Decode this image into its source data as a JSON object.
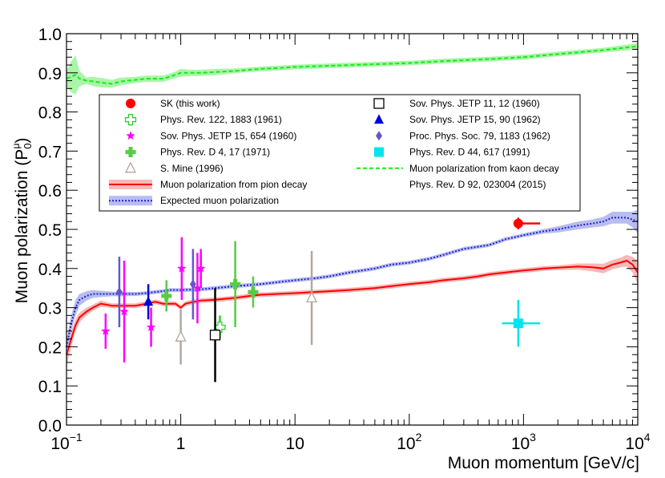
{
  "chart_data": {
    "type": "scatter",
    "xlabel": "Muon momentum [GeV/c]",
    "ylabel_main": "Muon polarization (P",
    "ylabel_sup": "μ",
    "ylabel_sub": "0",
    "ylabel_close": ")",
    "xscale": "log",
    "xlim": [
      0.1,
      10000
    ],
    "ylim": [
      0.0,
      1.0
    ],
    "grid": false,
    "legend_placement": "upper-center",
    "x_ticks": [
      {
        "v": 0.1,
        "base": "10",
        "exp": "−1"
      },
      {
        "v": 1,
        "base": "1",
        "exp": ""
      },
      {
        "v": 10,
        "base": "10",
        "exp": ""
      },
      {
        "v": 100,
        "base": "10",
        "exp": "2"
      },
      {
        "v": 1000,
        "base": "10",
        "exp": "3"
      },
      {
        "v": 10000,
        "base": "10",
        "exp": "4"
      }
    ],
    "y_ticks": [
      {
        "v": 0.0,
        "label": "0.0"
      },
      {
        "v": 0.1,
        "label": "0.1"
      },
      {
        "v": 0.2,
        "label": "0.2"
      },
      {
        "v": 0.3,
        "label": "0.3"
      },
      {
        "v": 0.4,
        "label": "0.4"
      },
      {
        "v": 0.5,
        "label": "0.5"
      },
      {
        "v": 0.6,
        "label": "0.6"
      },
      {
        "v": 0.7,
        "label": "0.7"
      },
      {
        "v": 0.8,
        "label": "0.8"
      },
      {
        "v": 0.9,
        "label": "0.9"
      },
      {
        "v": 1.0,
        "label": "1.0"
      }
    ],
    "series": [
      {
        "name": "SK (this work)",
        "kind": "points",
        "marker": "circle",
        "color": "#ff0000",
        "points": [
          {
            "x": 900,
            "y": 0.515,
            "exlo": 0,
            "exhi": 500,
            "ey": 0.015
          }
        ]
      },
      {
        "name": "Phys. Rev. 122, 1883 (1961)",
        "kind": "points",
        "marker": "open-cross",
        "color": "#33cc33",
        "points": [
          {
            "x": 2.2,
            "y": 0.25,
            "exlo": 0,
            "exhi": 0,
            "ey": 0.03
          }
        ]
      },
      {
        "name": "Sov. Phys. JETP 15, 654 (1960)",
        "kind": "points",
        "marker": "star",
        "color": "#ff00ff",
        "points": [
          {
            "x": 0.22,
            "y": 0.24,
            "exlo": 0,
            "exhi": 0,
            "ey": 0.045
          },
          {
            "x": 0.32,
            "y": 0.29,
            "exlo": 0,
            "exhi": 0,
            "ey": 0.13
          },
          {
            "x": 0.55,
            "y": 0.25,
            "exlo": 0,
            "exhi": 0,
            "ey": 0.05
          },
          {
            "x": 1.02,
            "y": 0.4,
            "exlo": 0,
            "exhi": 0,
            "ey": 0.08
          },
          {
            "x": 1.4,
            "y": 0.35,
            "exlo": 0,
            "exhi": 0,
            "ey": 0.09
          },
          {
            "x": 1.5,
            "y": 0.4,
            "exlo": 0,
            "exhi": 0,
            "ey": 0.05
          }
        ]
      },
      {
        "name": "Phys. Rev. D 4, 17 (1971)",
        "kind": "points",
        "marker": "filled-cross",
        "color": "#55cc44",
        "points": [
          {
            "x": 0.75,
            "y": 0.33,
            "exlo": 0,
            "exhi": 0,
            "ey": 0.04
          },
          {
            "x": 3.0,
            "y": 0.36,
            "exlo": 0,
            "exhi": 0,
            "ey": 0.11
          },
          {
            "x": 4.3,
            "y": 0.34,
            "exlo": 0,
            "exhi": 0,
            "ey": 0.04
          }
        ]
      },
      {
        "name": "S. Mine (1996)",
        "kind": "points",
        "marker": "open-triangle",
        "color": "#b0a8a0",
        "points": [
          {
            "x": 1.0,
            "y": 0.225,
            "exlo": 0,
            "exhi": 0,
            "ey": 0.07
          },
          {
            "x": 14,
            "y": 0.325,
            "exlo": 0,
            "exhi": 0,
            "ey": 0.12
          }
        ]
      },
      {
        "name": "Sov. Phys. JETP 11, 12 (1960)",
        "kind": "points",
        "marker": "open-square",
        "color": "#000000",
        "points": [
          {
            "x": 2.0,
            "y": 0.23,
            "exlo": 0,
            "exhi": 0,
            "ey": 0.12
          }
        ]
      },
      {
        "name": "Sov. Phys. JETP 15, 90 (1962)",
        "kind": "points",
        "marker": "triangle",
        "color": "#0000dd",
        "points": [
          {
            "x": 0.52,
            "y": 0.315,
            "exlo": 0,
            "exhi": 0,
            "ey": 0.045
          }
        ]
      },
      {
        "name": "Proc. Phys. Soc. 79, 1183 (1962)",
        "kind": "points",
        "marker": "diamond",
        "color": "#6655cc",
        "points": [
          {
            "x": 0.29,
            "y": 0.34,
            "exlo": 0,
            "exhi": 0,
            "ey": 0.09
          },
          {
            "x": 1.28,
            "y": 0.36,
            "exlo": 0,
            "exhi": 0,
            "ey": 0.09
          }
        ]
      },
      {
        "name": "Phys. Rev. D 44, 617 (1991)",
        "kind": "points",
        "marker": "square",
        "color": "#00e5ee",
        "points": [
          {
            "x": 900,
            "y": 0.26,
            "exlo": 250,
            "exhi": 500,
            "ey": 0.06
          }
        ]
      },
      {
        "name": "Muon polarization from pion decay",
        "kind": "band",
        "color": "#ff0000",
        "fill": "#f7b8b8",
        "dash": "",
        "x": [
          0.1,
          0.11,
          0.12,
          0.13,
          0.15,
          0.17,
          0.2,
          0.25,
          0.3,
          0.4,
          0.5,
          0.6,
          0.7,
          0.8,
          0.9,
          1.0,
          1.1,
          1.3,
          1.5,
          2,
          3,
          4,
          5,
          7,
          10,
          15,
          20,
          30,
          50,
          70,
          100,
          150,
          200,
          300,
          400,
          500,
          600,
          700,
          800,
          1000,
          1200,
          1500,
          2000,
          3000,
          4000,
          5000,
          6000,
          7000,
          8000,
          9000,
          10000
        ],
        "y": [
          0.18,
          0.22,
          0.255,
          0.275,
          0.29,
          0.3,
          0.31,
          0.305,
          0.305,
          0.305,
          0.31,
          0.315,
          0.31,
          0.31,
          0.31,
          0.3,
          0.31,
          0.315,
          0.318,
          0.32,
          0.325,
          0.33,
          0.333,
          0.335,
          0.337,
          0.34,
          0.342,
          0.345,
          0.35,
          0.355,
          0.36,
          0.365,
          0.37,
          0.375,
          0.38,
          0.385,
          0.388,
          0.39,
          0.392,
          0.395,
          0.397,
          0.4,
          0.402,
          0.405,
          0.403,
          0.4,
          0.41,
          0.415,
          0.42,
          0.41,
          0.39
        ],
        "err": [
          0.03,
          0.02,
          0.015,
          0.012,
          0.01,
          0.008,
          0.008,
          0.006,
          0.006,
          0.006,
          0.006,
          0.006,
          0.006,
          0.006,
          0.006,
          0.006,
          0.006,
          0.006,
          0.006,
          0.006,
          0.006,
          0.006,
          0.006,
          0.006,
          0.006,
          0.006,
          0.006,
          0.006,
          0.006,
          0.006,
          0.006,
          0.006,
          0.006,
          0.006,
          0.006,
          0.006,
          0.006,
          0.006,
          0.006,
          0.006,
          0.006,
          0.006,
          0.006,
          0.008,
          0.01,
          0.012,
          0.012,
          0.012,
          0.015,
          0.02,
          0.03
        ]
      },
      {
        "name": "Muon polarization from kaon decay",
        "kind": "band",
        "color": "#11ee11",
        "fill": "#aaf5aa",
        "dash": "5,3",
        "x": [
          0.1,
          0.11,
          0.12,
          0.13,
          0.15,
          0.17,
          0.2,
          0.25,
          0.3,
          0.4,
          0.5,
          0.6,
          0.7,
          0.8,
          0.9,
          1.0,
          1.2,
          1.5,
          2,
          3,
          5,
          7,
          10,
          20,
          50,
          100,
          200,
          500,
          1000,
          2000,
          5000,
          10000
        ],
        "y": [
          0.885,
          0.89,
          0.895,
          0.885,
          0.88,
          0.878,
          0.875,
          0.872,
          0.878,
          0.882,
          0.885,
          0.885,
          0.885,
          0.89,
          0.895,
          0.9,
          0.9,
          0.9,
          0.902,
          0.905,
          0.91,
          0.912,
          0.915,
          0.918,
          0.922,
          0.925,
          0.93,
          0.935,
          0.94,
          0.948,
          0.958,
          0.968
        ],
        "err": [
          0.02,
          0.04,
          0.05,
          0.02,
          0.008,
          0.012,
          0.012,
          0.01,
          0.01,
          0.008,
          0.008,
          0.008,
          0.008,
          0.008,
          0.008,
          0.01,
          0.008,
          0.008,
          0.008,
          0.006,
          0.006,
          0.006,
          0.006,
          0.006,
          0.006,
          0.006,
          0.006,
          0.006,
          0.006,
          0.006,
          0.006,
          0.008
        ]
      },
      {
        "name": "Expected muon polarization",
        "kind": "band",
        "color": "#2222cc",
        "fill": "#b8bdf0",
        "dash": "2,2",
        "x": [
          0.1,
          0.11,
          0.12,
          0.13,
          0.15,
          0.17,
          0.2,
          0.25,
          0.3,
          0.4,
          0.5,
          0.6,
          0.7,
          0.8,
          1.0,
          1.5,
          2,
          3,
          5,
          7,
          10,
          15,
          20,
          30,
          50,
          70,
          100,
          150,
          200,
          300,
          500,
          700,
          1000,
          1500,
          2000,
          3000,
          4000,
          5000,
          6000,
          7000,
          8000,
          9000,
          10000
        ],
        "y": [
          0.2,
          0.26,
          0.3,
          0.32,
          0.33,
          0.335,
          0.335,
          0.335,
          0.335,
          0.335,
          0.337,
          0.34,
          0.342,
          0.345,
          0.345,
          0.347,
          0.35,
          0.355,
          0.36,
          0.365,
          0.37,
          0.375,
          0.38,
          0.39,
          0.4,
          0.41,
          0.415,
          0.425,
          0.435,
          0.45,
          0.46,
          0.475,
          0.485,
          0.495,
          0.5,
          0.51,
          0.515,
          0.52,
          0.53,
          0.53,
          0.53,
          0.525,
          0.52
        ],
        "err": [
          0.02,
          0.02,
          0.02,
          0.015,
          0.012,
          0.01,
          0.008,
          0.006,
          0.006,
          0.005,
          0.005,
          0.005,
          0.005,
          0.005,
          0.005,
          0.005,
          0.005,
          0.005,
          0.005,
          0.005,
          0.005,
          0.005,
          0.005,
          0.005,
          0.005,
          0.005,
          0.005,
          0.005,
          0.005,
          0.005,
          0.005,
          0.005,
          0.005,
          0.006,
          0.008,
          0.01,
          0.01,
          0.012,
          0.015,
          0.015,
          0.015,
          0.02,
          0.03
        ]
      }
    ],
    "legend_left": [
      {
        "label": "SK (this work)",
        "marker": "circle",
        "color": "#ff0000"
      },
      {
        "label": "Phys. Rev. 122, 1883 (1961)",
        "marker": "open-cross",
        "color": "#33cc33"
      },
      {
        "label": "Sov. Phys. JETP 15, 654 (1960)",
        "marker": "star",
        "color": "#ff00ff"
      },
      {
        "label": "Phys. Rev. D 4, 17 (1971)",
        "marker": "filled-cross",
        "color": "#55cc44"
      },
      {
        "label": "S. Mine (1996)",
        "marker": "open-triangle",
        "color": "#b0a8a0"
      },
      {
        "label": "Muon polarization from pion decay",
        "marker": "band-line",
        "color": "#ff0000",
        "fill": "#f7b8b8",
        "dash": ""
      },
      {
        "label": "Expected muon polarization",
        "marker": "band-line",
        "color": "#2222cc",
        "fill": "#b8bdf0",
        "dash": "2,2"
      }
    ],
    "legend_right": [
      {
        "label": "Sov. Phys. JETP 11, 12 (1960)",
        "marker": "open-square",
        "color": "#000000"
      },
      {
        "label": "Sov. Phys. JETP 15, 90 (1962)",
        "marker": "triangle",
        "color": "#0000dd"
      },
      {
        "label": "Proc. Phys. Soc. 79, 1183 (1962)",
        "marker": "diamond",
        "color": "#6655cc"
      },
      {
        "label": "Phys. Rev. D 44, 617 (1991)",
        "marker": "square",
        "color": "#00e5ee"
      },
      {
        "label": "Muon polarization from kaon decay",
        "marker": "line",
        "color": "#11ee11",
        "dash": "5,3"
      },
      {
        "label": "Phys. Rev. D 92, 023004 (2015)",
        "marker": "none",
        "color": "#000000"
      }
    ]
  }
}
